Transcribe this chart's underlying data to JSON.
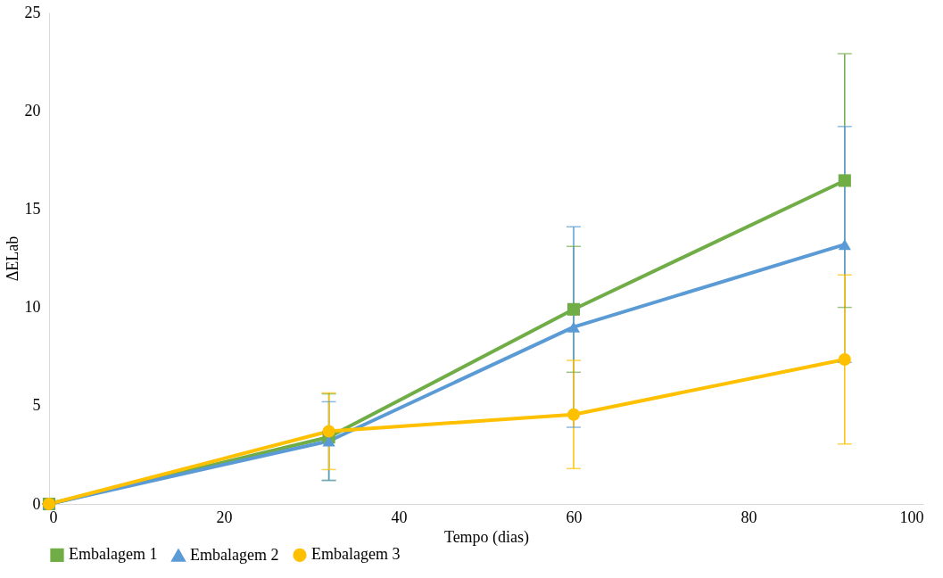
{
  "chart_data": {
    "type": "line",
    "xlabel": "Tempo (dias)",
    "ylabel": "ΔELab",
    "x": [
      0,
      32,
      60,
      91
    ],
    "series": [
      {
        "name": "Embalagem 1",
        "color": "#70ad47",
        "marker": "square",
        "values": [
          0,
          3.4,
          9.9,
          16.45
        ],
        "errors": [
          0,
          2.2,
          3.2,
          6.45
        ]
      },
      {
        "name": "Embalagem 2",
        "color": "#5b9bd5",
        "marker": "triangle",
        "values": [
          0,
          3.2,
          9.0,
          13.2
        ],
        "errors": [
          0,
          2.0,
          5.1,
          6.0
        ]
      },
      {
        "name": "Embalagem 3",
        "color": "#ffc000",
        "marker": "circle",
        "values": [
          0,
          3.7,
          4.55,
          7.35
        ],
        "errors": [
          0,
          1.95,
          2.75,
          4.3
        ]
      }
    ],
    "xlim": [
      0,
      100
    ],
    "xticks": [
      0,
      20,
      40,
      60,
      80,
      100
    ],
    "ylim": [
      0,
      25
    ],
    "yticks": [
      0,
      5,
      10,
      15,
      20,
      25
    ],
    "grid": false,
    "legend": "bottom",
    "line_style": "solid"
  }
}
